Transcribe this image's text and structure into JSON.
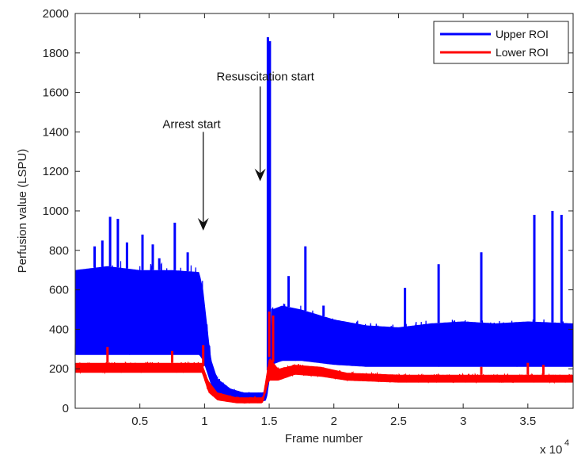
{
  "chart_data": {
    "type": "line",
    "title": "",
    "xlabel": "Frame number",
    "ylabel": "Perfusion value (LSPU)",
    "x_multiplier_label": "x 10",
    "x_multiplier_exponent": "4",
    "xlim": [
      0,
      38500
    ],
    "ylim": [
      0,
      2000
    ],
    "x_ticks": [
      5000,
      10000,
      15000,
      20000,
      25000,
      30000,
      35000
    ],
    "x_tick_labels": [
      "0.5",
      "1",
      "1.5",
      "2",
      "2.5",
      "3",
      "3.5"
    ],
    "y_ticks": [
      0,
      200,
      400,
      600,
      800,
      1000,
      1200,
      1400,
      1600,
      1800,
      2000
    ],
    "y_tick_labels": [
      "0",
      "200",
      "400",
      "600",
      "800",
      "1000",
      "1200",
      "1400",
      "1600",
      "1800",
      "2000"
    ],
    "grid": false,
    "legend_position": "top-right",
    "series": [
      {
        "name": "Upper ROI",
        "color": "#0000ff",
        "envelope": [
          {
            "x": 0,
            "low": 270,
            "high": 700
          },
          {
            "x": 2500,
            "low": 270,
            "high": 720
          },
          {
            "x": 5000,
            "low": 270,
            "high": 700
          },
          {
            "x": 7500,
            "low": 270,
            "high": 700
          },
          {
            "x": 9600,
            "low": 270,
            "high": 690
          },
          {
            "x": 9900,
            "low": 240,
            "high": 600
          },
          {
            "x": 10500,
            "low": 120,
            "high": 250
          },
          {
            "x": 11000,
            "low": 70,
            "high": 150
          },
          {
            "x": 12000,
            "low": 45,
            "high": 100
          },
          {
            "x": 13000,
            "low": 35,
            "high": 80
          },
          {
            "x": 14500,
            "low": 35,
            "high": 80
          },
          {
            "x": 14800,
            "low": 40,
            "high": 90
          },
          {
            "x": 15200,
            "low": 220,
            "high": 500
          },
          {
            "x": 16000,
            "low": 240,
            "high": 520
          },
          {
            "x": 17500,
            "low": 240,
            "high": 500
          },
          {
            "x": 20000,
            "low": 220,
            "high": 450
          },
          {
            "x": 22500,
            "low": 210,
            "high": 420
          },
          {
            "x": 25000,
            "low": 210,
            "high": 410
          },
          {
            "x": 27500,
            "low": 210,
            "high": 430
          },
          {
            "x": 30000,
            "low": 210,
            "high": 440
          },
          {
            "x": 32500,
            "low": 210,
            "high": 430
          },
          {
            "x": 35000,
            "low": 210,
            "high": 440
          },
          {
            "x": 38500,
            "low": 210,
            "high": 430
          }
        ],
        "spikes": [
          {
            "x": 1500,
            "y": 820
          },
          {
            "x": 2100,
            "y": 850
          },
          {
            "x": 2700,
            "y": 970
          },
          {
            "x": 3300,
            "y": 960
          },
          {
            "x": 4000,
            "y": 840
          },
          {
            "x": 5200,
            "y": 880
          },
          {
            "x": 6000,
            "y": 830
          },
          {
            "x": 6500,
            "y": 760
          },
          {
            "x": 7700,
            "y": 940
          },
          {
            "x": 8700,
            "y": 790
          },
          {
            "x": 14900,
            "y": 1880
          },
          {
            "x": 15050,
            "y": 1860
          },
          {
            "x": 16500,
            "y": 670
          },
          {
            "x": 17800,
            "y": 820
          },
          {
            "x": 19200,
            "y": 520
          },
          {
            "x": 25500,
            "y": 610
          },
          {
            "x": 28100,
            "y": 730
          },
          {
            "x": 31400,
            "y": 790
          },
          {
            "x": 35500,
            "y": 980
          },
          {
            "x": 36900,
            "y": 1000
          },
          {
            "x": 37600,
            "y": 980
          }
        ]
      },
      {
        "name": "Lower ROI",
        "color": "#ff0000",
        "envelope": [
          {
            "x": 0,
            "low": 180,
            "high": 230
          },
          {
            "x": 5000,
            "low": 180,
            "high": 230
          },
          {
            "x": 9800,
            "low": 180,
            "high": 230
          },
          {
            "x": 10300,
            "low": 80,
            "high": 140
          },
          {
            "x": 11000,
            "low": 40,
            "high": 80
          },
          {
            "x": 12500,
            "low": 25,
            "high": 55
          },
          {
            "x": 14500,
            "low": 25,
            "high": 55
          },
          {
            "x": 15000,
            "low": 140,
            "high": 260
          },
          {
            "x": 15700,
            "low": 140,
            "high": 200
          },
          {
            "x": 17000,
            "low": 170,
            "high": 220
          },
          {
            "x": 19000,
            "low": 160,
            "high": 210
          },
          {
            "x": 21000,
            "low": 140,
            "high": 180
          },
          {
            "x": 25000,
            "low": 130,
            "high": 170
          },
          {
            "x": 30000,
            "low": 130,
            "high": 170
          },
          {
            "x": 38500,
            "low": 130,
            "high": 170
          }
        ],
        "spikes": [
          {
            "x": 2500,
            "y": 310
          },
          {
            "x": 7500,
            "y": 290
          },
          {
            "x": 9900,
            "y": 320
          },
          {
            "x": 15000,
            "y": 490
          },
          {
            "x": 15300,
            "y": 470
          },
          {
            "x": 31400,
            "y": 210
          },
          {
            "x": 35000,
            "y": 230
          },
          {
            "x": 36200,
            "y": 220
          }
        ]
      }
    ],
    "annotations": [
      {
        "text": "Arrest start",
        "arrow_x": 9900,
        "arrow_y_from": 1400,
        "arrow_y_to": 900,
        "label_x": 9000,
        "label_y": 1420
      },
      {
        "text": "Resuscitation start",
        "arrow_x": 14300,
        "arrow_y_from": 1630,
        "arrow_y_to": 1150,
        "label_x": 14700,
        "label_y": 1660
      }
    ]
  }
}
